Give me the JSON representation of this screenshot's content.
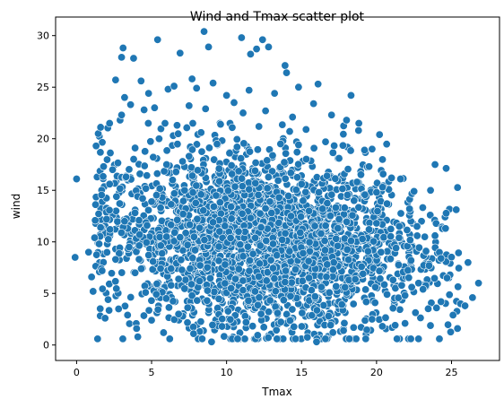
{
  "chart_data": {
    "type": "scatter",
    "title": "Wind and Tmax scatter plot",
    "xlabel": "Tmax",
    "ylabel": "wind",
    "xlim": [
      -1.4,
      28.2
    ],
    "ylim": [
      -1.5,
      31.8
    ],
    "xticks": [
      0,
      5,
      10,
      15,
      20,
      25
    ],
    "yticks": [
      0,
      5,
      10,
      15,
      20,
      25,
      30
    ],
    "grid": false,
    "color": "#1f77b4",
    "series": [
      {
        "points": [
          [
            -0.1,
            8.5
          ],
          [
            0.0,
            16.1
          ],
          [
            0.8,
            9.0
          ],
          [
            1.0,
            6.6
          ],
          [
            1.1,
            5.2
          ],
          [
            1.2,
            10.4
          ],
          [
            1.3,
            19.3
          ],
          [
            1.5,
            9.8
          ],
          [
            1.6,
            11.4
          ],
          [
            1.7,
            7.2
          ],
          [
            1.8,
            17.3
          ],
          [
            1.9,
            2.6
          ],
          [
            2.0,
            12.2
          ],
          [
            2.1,
            4.4
          ],
          [
            2.2,
            15.6
          ],
          [
            2.4,
            17.0
          ],
          [
            2.6,
            8.3
          ],
          [
            2.6,
            25.7
          ],
          [
            2.8,
            3.5
          ],
          [
            2.9,
            21.8
          ],
          [
            3.0,
            22.3
          ],
          [
            3.0,
            27.9
          ],
          [
            3.1,
            28.8
          ],
          [
            3.2,
            24.0
          ],
          [
            3.3,
            16.3
          ],
          [
            3.4,
            2.9
          ],
          [
            3.6,
            23.3
          ],
          [
            3.8,
            27.8
          ],
          [
            3.9,
            19.1
          ],
          [
            4.0,
            1.6
          ],
          [
            4.2,
            10.7
          ],
          [
            4.3,
            25.6
          ],
          [
            4.5,
            22.8
          ],
          [
            4.6,
            5.1
          ],
          [
            4.8,
            24.4
          ],
          [
            5.0,
            2.4
          ],
          [
            5.0,
            13.9
          ],
          [
            5.2,
            23.0
          ],
          [
            5.4,
            29.6
          ],
          [
            5.5,
            20.0
          ],
          [
            5.8,
            1.2
          ],
          [
            6.0,
            17.5
          ],
          [
            6.1,
            24.8
          ],
          [
            6.3,
            7.4
          ],
          [
            6.5,
            25.1
          ],
          [
            6.7,
            21.3
          ],
          [
            6.8,
            3.0
          ],
          [
            6.9,
            28.3
          ],
          [
            7.2,
            15.0
          ],
          [
            7.4,
            9.7
          ],
          [
            7.5,
            23.2
          ],
          [
            7.7,
            25.8
          ],
          [
            7.8,
            1.1
          ],
          [
            8.0,
            24.9
          ],
          [
            8.2,
            6.2
          ],
          [
            8.3,
            20.6
          ],
          [
            8.5,
            30.4
          ],
          [
            8.6,
            22.9
          ],
          [
            8.8,
            28.9
          ],
          [
            8.9,
            12.1
          ],
          [
            9.0,
            0.3
          ],
          [
            9.1,
            25.4
          ],
          [
            9.3,
            14.5
          ],
          [
            9.6,
            21.4
          ],
          [
            9.7,
            1.8
          ],
          [
            10.0,
            24.2
          ],
          [
            10.2,
            18.6
          ],
          [
            10.3,
            5.5
          ],
          [
            10.5,
            23.5
          ],
          [
            10.8,
            11.0
          ],
          [
            11.0,
            29.8
          ],
          [
            11.1,
            22.5
          ],
          [
            11.3,
            2.2
          ],
          [
            11.5,
            24.7
          ],
          [
            11.6,
            28.2
          ],
          [
            11.9,
            16.9
          ],
          [
            12.0,
            28.7
          ],
          [
            12.2,
            7.9
          ],
          [
            12.4,
            29.6
          ],
          [
            12.6,
            22.7
          ],
          [
            12.8,
            28.9
          ],
          [
            13.0,
            12.8
          ],
          [
            13.2,
            24.4
          ],
          [
            13.4,
            3.1
          ],
          [
            13.6,
            19.5
          ],
          [
            13.9,
            27.1
          ],
          [
            14.0,
            26.4
          ],
          [
            14.2,
            9.1
          ],
          [
            14.4,
            22.1
          ],
          [
            14.6,
            0.6
          ],
          [
            14.8,
            25.0
          ],
          [
            15.0,
            15.6
          ],
          [
            15.3,
            20.9
          ],
          [
            15.5,
            6.5
          ],
          [
            15.8,
            23.4
          ],
          [
            16.0,
            0.3
          ],
          [
            16.1,
            25.3
          ],
          [
            16.4,
            13.2
          ],
          [
            16.6,
            19.7
          ],
          [
            16.8,
            2.8
          ],
          [
            17.0,
            22.3
          ],
          [
            17.3,
            10.3
          ],
          [
            17.5,
            18.1
          ],
          [
            17.8,
            1.4
          ],
          [
            18.0,
            21.8
          ],
          [
            18.3,
            24.2
          ],
          [
            18.5,
            14.0
          ],
          [
            18.8,
            20.8
          ],
          [
            19.0,
            7.6
          ],
          [
            19.2,
            18.9
          ],
          [
            19.5,
            17.3
          ],
          [
            19.7,
            2.5
          ],
          [
            20.0,
            11.8
          ],
          [
            20.2,
            20.4
          ],
          [
            20.4,
            15.3
          ],
          [
            20.7,
            4.9
          ],
          [
            21.0,
            16.2
          ],
          [
            21.3,
            9.4
          ],
          [
            21.6,
            16.1
          ],
          [
            21.9,
            2.1
          ],
          [
            22.2,
            13.2
          ],
          [
            22.5,
            14.9
          ],
          [
            22.8,
            6.0
          ],
          [
            23.0,
            12.0
          ],
          [
            23.3,
            9.1
          ],
          [
            23.6,
            15.0
          ],
          [
            23.9,
            17.5
          ],
          [
            24.0,
            3.6
          ],
          [
            24.3,
            8.4
          ],
          [
            24.6,
            11.3
          ],
          [
            24.9,
            6.8
          ],
          [
            25.1,
            2.9
          ],
          [
            25.4,
            1.6
          ],
          [
            25.6,
            4.0
          ],
          [
            25.9,
            3.8
          ],
          [
            26.1,
            8.0
          ],
          [
            26.4,
            4.6
          ],
          [
            26.8,
            6.0
          ],
          [
            3.2,
            12.0
          ],
          [
            3.5,
            9.5
          ],
          [
            3.9,
            7.0
          ],
          [
            4.4,
            14.2
          ],
          [
            4.7,
            11.6
          ],
          [
            5.1,
            8.1
          ],
          [
            5.6,
            13.3
          ],
          [
            6.0,
            10.5
          ],
          [
            6.4,
            16.0
          ],
          [
            6.8,
            6.4
          ],
          [
            7.1,
            12.7
          ],
          [
            7.5,
            18.3
          ],
          [
            7.9,
            9.2
          ],
          [
            8.3,
            14.6
          ],
          [
            8.7,
            4.3
          ],
          [
            9.1,
            11.9
          ],
          [
            9.5,
            17.1
          ],
          [
            9.9,
            7.8
          ],
          [
            10.3,
            13.4
          ],
          [
            10.7,
            19.2
          ],
          [
            11.1,
            8.6
          ],
          [
            11.5,
            15.1
          ],
          [
            11.9,
            5.2
          ],
          [
            12.3,
            11.4
          ],
          [
            12.7,
            17.9
          ],
          [
            13.1,
            9.8
          ],
          [
            13.5,
            14.3
          ],
          [
            13.9,
            6.1
          ],
          [
            14.3,
            12.5
          ],
          [
            14.7,
            18.7
          ],
          [
            15.1,
            8.9
          ],
          [
            15.5,
            13.0
          ],
          [
            15.9,
            4.7
          ],
          [
            16.3,
            10.8
          ],
          [
            16.7,
            16.4
          ],
          [
            17.1,
            7.3
          ],
          [
            17.5,
            12.2
          ],
          [
            17.9,
            5.6
          ],
          [
            18.3,
            10.1
          ],
          [
            18.7,
            15.8
          ],
          [
            19.1,
            6.9
          ],
          [
            19.5,
            11.2
          ],
          [
            19.9,
            4.1
          ],
          [
            20.3,
            9.0
          ],
          [
            20.7,
            13.7
          ],
          [
            21.1,
            6.3
          ],
          [
            21.5,
            10.4
          ],
          [
            21.9,
            4.8
          ],
          [
            22.3,
            8.2
          ],
          [
            22.7,
            11.5
          ],
          [
            23.1,
            5.4
          ],
          [
            23.5,
            7.7
          ],
          [
            23.9,
            10.6
          ],
          [
            24.3,
            4.2
          ],
          [
            24.7,
            6.5
          ]
        ]
      }
    ],
    "dense_region_note_for_render": "core"
  }
}
